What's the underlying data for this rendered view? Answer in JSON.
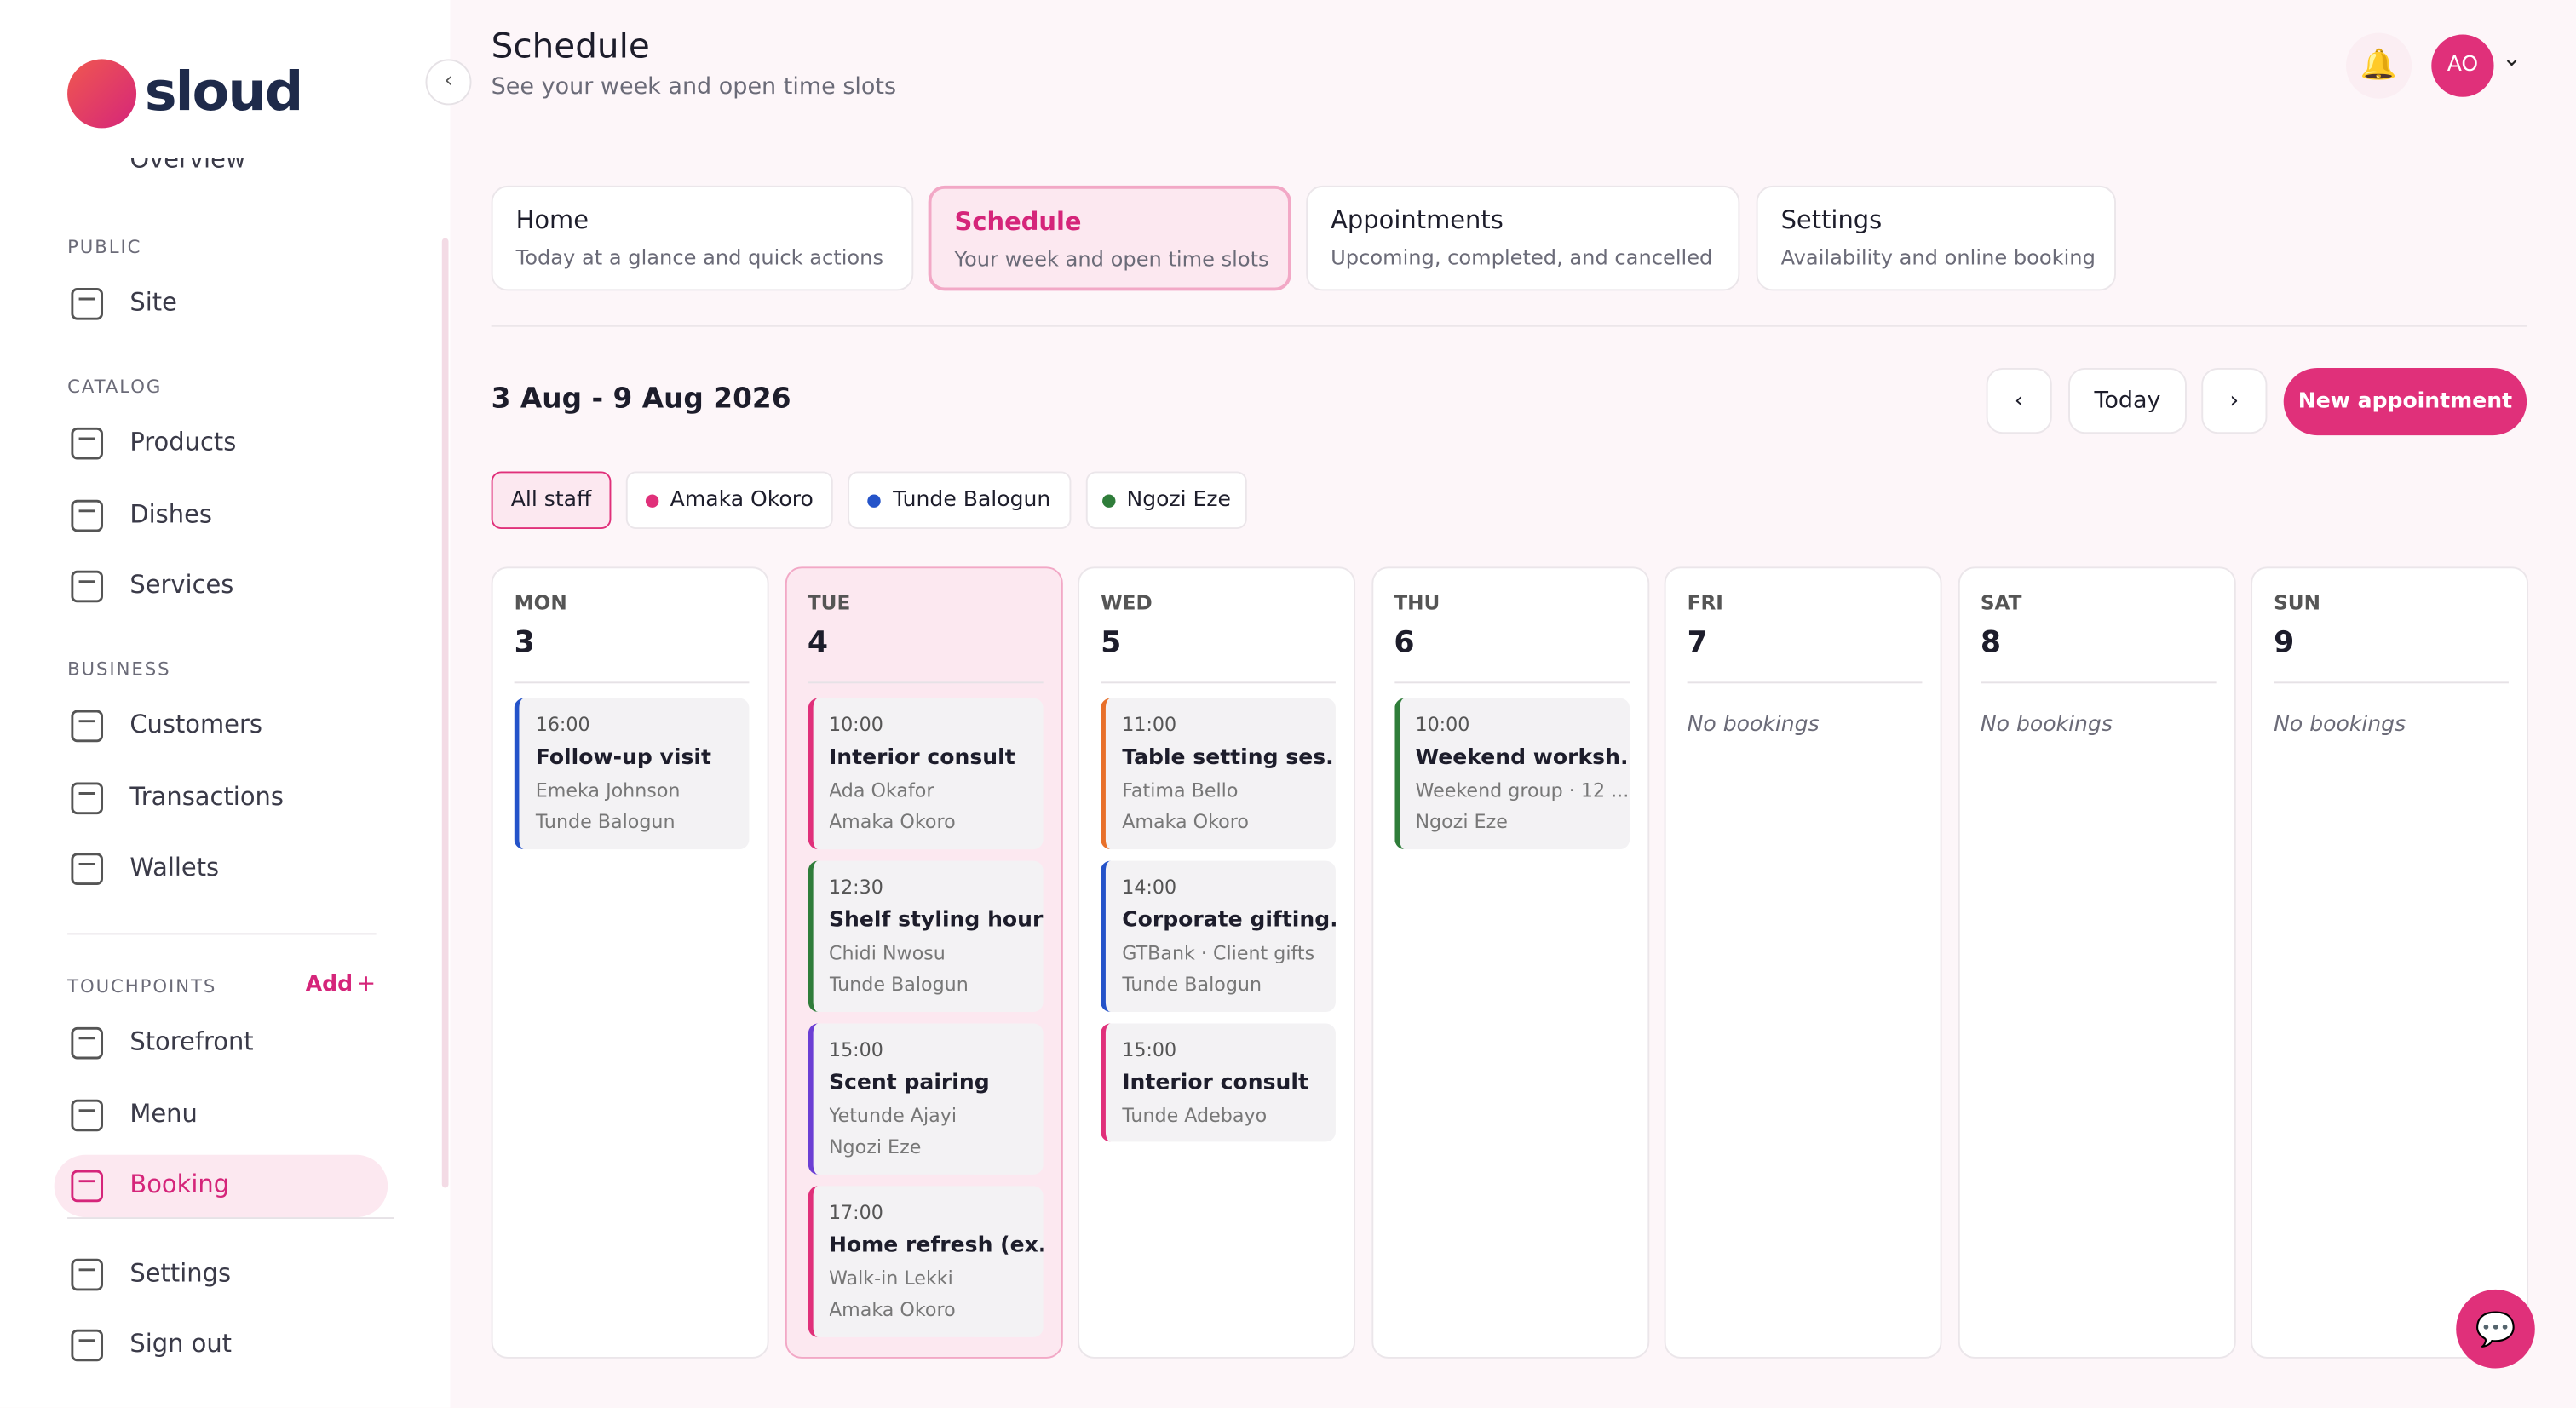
{
  "brand": "sloud",
  "sidebar": {
    "partial_item": "Overview",
    "sections": [
      {
        "label": "PUBLIC",
        "items": [
          "Site"
        ]
      },
      {
        "label": "CATALOG",
        "items": [
          "Products",
          "Dishes",
          "Services"
        ]
      },
      {
        "label": "BUSINESS",
        "items": [
          "Customers",
          "Transactions",
          "Wallets"
        ]
      },
      {
        "label": "TOUCHPOINTS",
        "action": "Add",
        "items": [
          "Storefront",
          "Menu",
          "Booking"
        ]
      }
    ],
    "active": "Booking",
    "footer": [
      "Settings",
      "Sign out"
    ]
  },
  "header": {
    "title": "Schedule",
    "subtitle": "See your week and open time slots",
    "avatar": "AO"
  },
  "tabs": [
    {
      "title": "Home",
      "desc": "Today at a glance and quick actions"
    },
    {
      "title": "Schedule",
      "desc": "Your week and open time slots",
      "active": true
    },
    {
      "title": "Appointments",
      "desc": "Upcoming, completed, and cancelled"
    },
    {
      "title": "Settings",
      "desc": "Availability and online booking"
    }
  ],
  "week": {
    "range": "3 Aug - 9 Aug 2026",
    "today": "Today",
    "new": "New appointment"
  },
  "staff": [
    {
      "name": "All staff",
      "active": true
    },
    {
      "name": "Amaka Okoro",
      "color": "#e0307a"
    },
    {
      "name": "Tunde Balogun",
      "color": "#2453c9"
    },
    {
      "name": "Ngozi Eze",
      "color": "#2f7d3a"
    }
  ],
  "empty_label": "No bookings",
  "days": [
    {
      "dow": "MON",
      "date": "3",
      "events": [
        {
          "time": "16:00",
          "title": "Follow-up visit",
          "lines": [
            "Emeka Johnson",
            "Tunde Balogun"
          ],
          "color": "#2453c9"
        }
      ]
    },
    {
      "dow": "TUE",
      "date": "4",
      "today": true,
      "events": [
        {
          "time": "10:00",
          "title": "Interior consult",
          "lines": [
            "Ada Okafor",
            "Amaka Okoro"
          ],
          "color": "#e0307a"
        },
        {
          "time": "12:30",
          "title": "Shelf styling hour",
          "lines": [
            "Chidi Nwosu",
            "Tunde Balogun"
          ],
          "color": "#2f7d3a"
        },
        {
          "time": "15:00",
          "title": "Scent pairing",
          "lines": [
            "Yetunde Ajayi",
            "Ngozi Eze"
          ],
          "color": "#6b3fd4"
        },
        {
          "time": "17:00",
          "title": "Home refresh (ex...",
          "lines": [
            "Walk-in Lekki",
            "Amaka Okoro"
          ],
          "color": "#e0307a"
        }
      ]
    },
    {
      "dow": "WED",
      "date": "5",
      "events": [
        {
          "time": "11:00",
          "title": "Table setting ses...",
          "lines": [
            "Fatima Bello",
            "Amaka Okoro"
          ],
          "color": "#e8702a"
        },
        {
          "time": "14:00",
          "title": "Corporate gifting...",
          "lines": [
            "GTBank · Client gifts",
            "Tunde Balogun"
          ],
          "color": "#2453c9"
        },
        {
          "time": "15:00",
          "title": "Interior consult",
          "lines": [
            "Tunde Adebayo"
          ],
          "color": "#e0307a"
        }
      ]
    },
    {
      "dow": "THU",
      "date": "6",
      "events": [
        {
          "time": "10:00",
          "title": "Weekend worksh...",
          "lines": [
            "Weekend group · 12 ...",
            "Ngozi Eze"
          ],
          "color": "#2f7d3a"
        }
      ]
    },
    {
      "dow": "FRI",
      "date": "7",
      "events": []
    },
    {
      "dow": "SAT",
      "date": "8",
      "events": []
    },
    {
      "dow": "SUN",
      "date": "9",
      "events": []
    }
  ]
}
